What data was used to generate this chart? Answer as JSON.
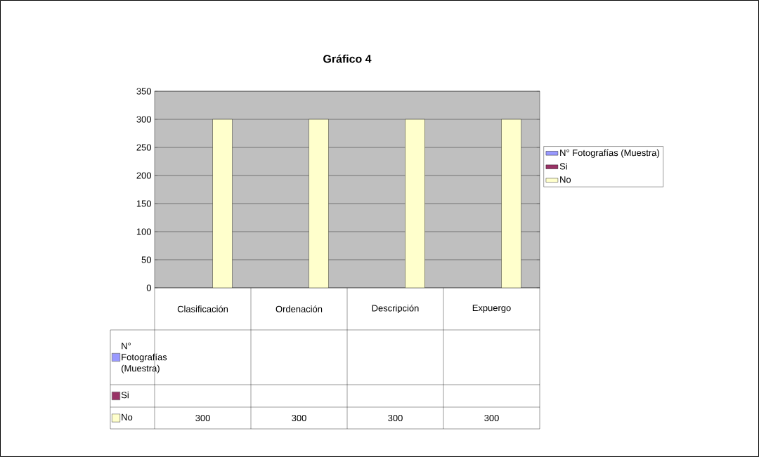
{
  "chart_data": {
    "type": "bar",
    "title": "Gráfico 4",
    "categories": [
      "Clasificación",
      "Ordenación",
      "Descripción",
      "Expuergo"
    ],
    "series": [
      {
        "name": "N° Fotografías (Muestra)",
        "color": "#9999ff",
        "values": [
          null,
          null,
          null,
          null
        ]
      },
      {
        "name": "Si",
        "color": "#993366",
        "values": [
          null,
          null,
          null,
          null
        ]
      },
      {
        "name": "No",
        "color": "#ffffcc",
        "values": [
          300,
          300,
          300,
          300
        ]
      }
    ],
    "ylim": [
      0,
      350
    ],
    "yticks": [
      0,
      50,
      100,
      150,
      200,
      250,
      300,
      350
    ],
    "grid": true,
    "legend": "right",
    "data_labels": true
  }
}
